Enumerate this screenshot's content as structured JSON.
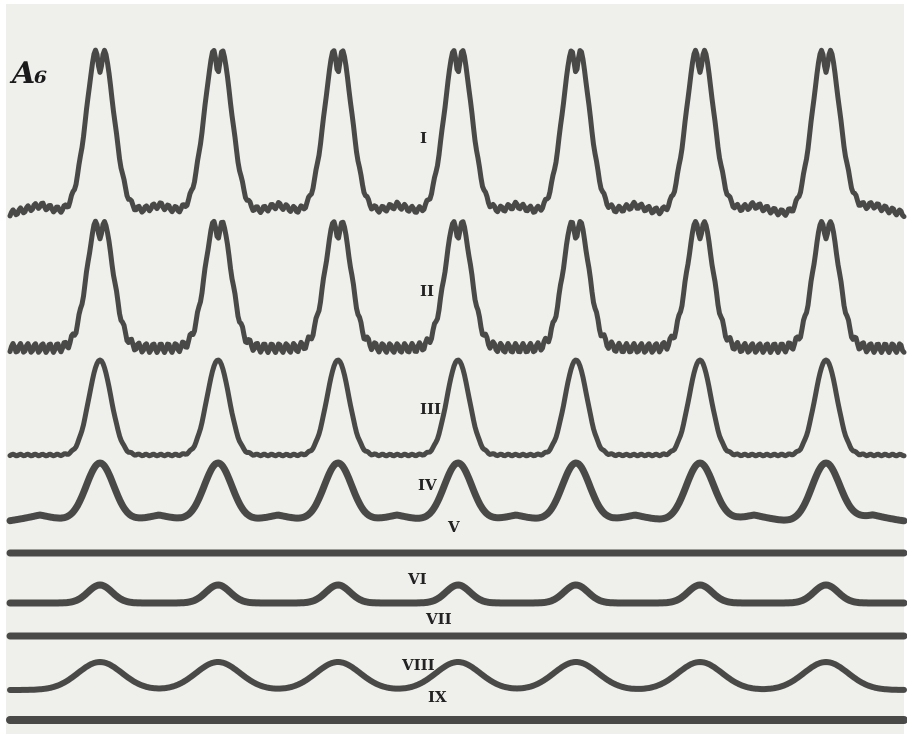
{
  "figure": {
    "panel_label": "A₆",
    "trace_labels": [
      "I",
      "II",
      "III",
      "IV",
      "V",
      "VI",
      "VII",
      "VIII",
      "IX"
    ]
  },
  "colors": {
    "background": "#ffffff",
    "plate": "#efefec",
    "trace": "#2b2b2b"
  }
}
